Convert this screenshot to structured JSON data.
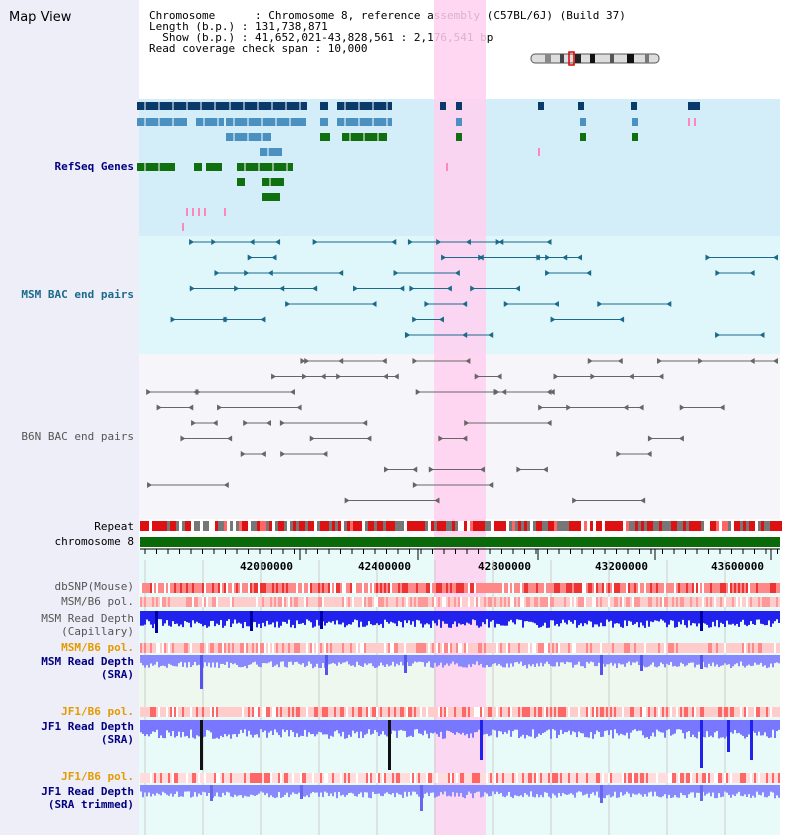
{
  "title": "Map View",
  "info": {
    "chromosome_line": "Chromosome      : Chromosome 8, reference assembly (C57BL/6J) (Build 37)",
    "length_line": "Length (b.p.) : 131,738,871",
    "show_line": "  Show (b.p.) : 41,652,021-43,828,561 : 2,176,541 bp",
    "coverage_line": "Read coverage check span : 10,000"
  },
  "tracks": {
    "refseq": "RefSeq Genes",
    "msm_bac": "MSM BAC end pairs",
    "b6n_bac": "B6N BAC end pairs",
    "repeat": "Repeat",
    "chromosome": "chromosome 8",
    "dbsnp": "dbSNP(Mouse)",
    "msm_b6_pol_1": "MSM/B6 pol.",
    "msm_depth_cap_1": "MSM Read Depth",
    "msm_depth_cap_2": "(Capillary)",
    "msm_b6_pol_2": "MSM/B6 pol.",
    "msm_depth_sra_1": "MSM Read Depth",
    "msm_depth_sra_2": "(SRA)",
    "jf1_b6_pol_1": "JF1/B6 pol.",
    "jf1_depth_sra_1": "JF1 Read Depth",
    "jf1_depth_sra_2": "(SRA)",
    "jf1_b6_pol_2": "JF1/B6 pol.",
    "jf1_depth_trim_1": "JF1 Read Depth",
    "jf1_depth_trim_2": "(SRA trimmed)"
  },
  "axis_ticks": [
    "42000000",
    "42400000",
    "42800000",
    "43200000",
    "43600000"
  ],
  "colors": {
    "highlight": "#ffd0f0",
    "refseq_bg": "#d4eef9",
    "bac_bg": "#dff7fb",
    "refseq_dark": "#0a3a6a",
    "refseq_mid": "#4a90c0",
    "refseq_green": "#107010",
    "chromosome_green": "#0a6a0a",
    "depth_blue": "#2222ee",
    "depth_light": "#8888ff"
  }
}
